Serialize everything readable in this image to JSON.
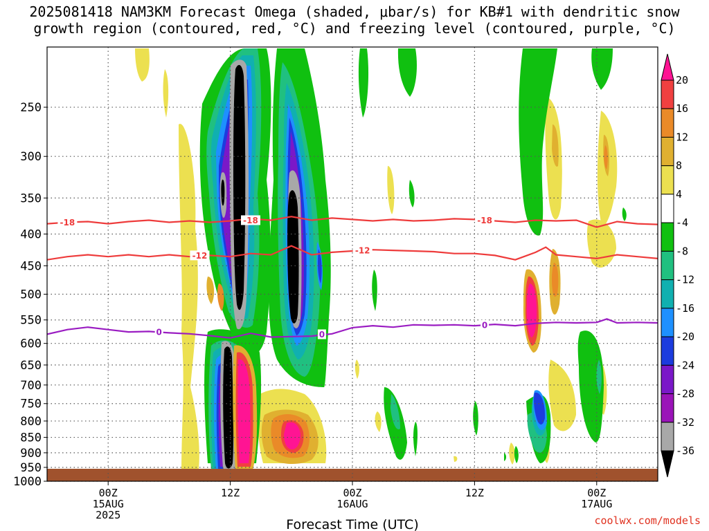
{
  "title_line1": "2025081418 NAM3KM Forecast Omega (shaded, μbar/s) for KB#1 with dendritic snow",
  "title_line2": "growth region (contoured, red, °C) and freezing level (contoured, purple, °C)",
  "credit": "coolwx.com/models",
  "colors": {
    "dgz_contour": "#ee3b3b",
    "freezing_contour": "#9a1cc2",
    "ground": "#a0522d"
  },
  "chart_data": {
    "type": "heatmap",
    "title": "2025081418 NAM3KM Forecast Omega (shaded, μbar/s) for KB#1 with dendritic snow growth region (contoured, red, °C) and freezing level (contoured, purple, °C)",
    "xlabel": "Forecast Time (UTC)",
    "ylabel": "",
    "x_ticks": [
      {
        "label": "00Z",
        "sub": "15AUG",
        "sub2": "2025",
        "hour": 6
      },
      {
        "label": "12Z",
        "sub": "",
        "sub2": "",
        "hour": 18
      },
      {
        "label": "00Z",
        "sub": "16AUG",
        "sub2": "",
        "hour": 30
      },
      {
        "label": "12Z",
        "sub": "",
        "sub2": "",
        "hour": 42
      },
      {
        "label": "00Z",
        "sub": "17AUG",
        "sub2": "",
        "hour": 54
      }
    ],
    "xlim_hours": [
      0,
      60
    ],
    "y_ticks": [
      250,
      300,
      350,
      400,
      450,
      500,
      550,
      600,
      650,
      700,
      750,
      800,
      850,
      900,
      950,
      1000
    ],
    "ylim_hpa": [
      200,
      1000
    ],
    "y_scale": "log-pressure",
    "grid": true,
    "colorbar": {
      "labels": [
        "20",
        "16",
        "12",
        "8",
        "4",
        "-4",
        "-8",
        "-12",
        "-16",
        "-20",
        "-24",
        "-28",
        "-32",
        "-36"
      ],
      "colors": [
        "#ff1493",
        "#f04040",
        "#ea8a28",
        "#e0b030",
        "#ece050",
        "#ffffff",
        "#10c010",
        "#20c080",
        "#10b0b0",
        "#1e90ff",
        "#1c3cde",
        "#7a18c8",
        "#9a14b8",
        "#a8a8a8",
        "#000000"
      ]
    },
    "dgz_contours": [
      {
        "value": -18,
        "label": "-18",
        "points": [
          [
            0,
            385
          ],
          [
            2,
            383
          ],
          [
            4,
            382
          ],
          [
            6,
            385
          ],
          [
            8,
            382
          ],
          [
            10,
            380
          ],
          [
            12,
            383
          ],
          [
            14,
            381
          ],
          [
            16,
            383
          ],
          [
            18,
            381
          ],
          [
            20,
            378
          ],
          [
            22,
            380
          ],
          [
            24,
            375
          ],
          [
            26,
            380
          ],
          [
            28,
            377
          ],
          [
            30,
            379
          ],
          [
            32,
            381
          ],
          [
            34,
            379
          ],
          [
            36,
            381
          ],
          [
            38,
            380
          ],
          [
            40,
            378
          ],
          [
            42,
            379
          ],
          [
            44,
            381
          ],
          [
            46,
            383
          ],
          [
            48,
            380
          ],
          [
            50,
            381
          ],
          [
            52,
            380
          ],
          [
            54,
            390
          ],
          [
            56,
            382
          ],
          [
            58,
            385
          ],
          [
            60,
            386
          ]
        ],
        "label_at": [
          [
            2,
            383
          ],
          [
            20,
            380
          ],
          [
            43,
            380
          ]
        ]
      },
      {
        "value": -12,
        "label": "-12",
        "points": [
          [
            0,
            440
          ],
          [
            2,
            435
          ],
          [
            4,
            432
          ],
          [
            6,
            435
          ],
          [
            8,
            432
          ],
          [
            10,
            435
          ],
          [
            12,
            432
          ],
          [
            14,
            435
          ],
          [
            16,
            433
          ],
          [
            18,
            435
          ],
          [
            20,
            430
          ],
          [
            22,
            432
          ],
          [
            24,
            418
          ],
          [
            26,
            432
          ],
          [
            28,
            428
          ],
          [
            30,
            426
          ],
          [
            32,
            424
          ],
          [
            34,
            425
          ],
          [
            36,
            426
          ],
          [
            38,
            427
          ],
          [
            40,
            430
          ],
          [
            42,
            430
          ],
          [
            44,
            433
          ],
          [
            46,
            440
          ],
          [
            48,
            428
          ],
          [
            49,
            420
          ],
          [
            50,
            432
          ],
          [
            52,
            435
          ],
          [
            54,
            438
          ],
          [
            56,
            432
          ],
          [
            58,
            435
          ],
          [
            60,
            438
          ]
        ],
        "label_at": [
          [
            15,
            433
          ],
          [
            31,
            425
          ]
        ]
      }
    ],
    "freezing_contours": [
      {
        "value": 0,
        "label": "0",
        "points": [
          [
            0,
            580
          ],
          [
            2,
            570
          ],
          [
            4,
            565
          ],
          [
            6,
            570
          ],
          [
            8,
            575
          ],
          [
            10,
            574
          ],
          [
            12,
            577
          ],
          [
            14,
            579
          ],
          [
            16,
            583
          ],
          [
            18,
            588
          ],
          [
            20,
            578
          ],
          [
            22,
            586
          ],
          [
            24,
            585
          ],
          [
            26,
            584
          ],
          [
            28,
            579
          ],
          [
            30,
            566
          ],
          [
            32,
            562
          ],
          [
            34,
            565
          ],
          [
            36,
            560
          ],
          [
            38,
            561
          ],
          [
            40,
            560
          ],
          [
            42,
            562
          ],
          [
            44,
            559
          ],
          [
            46,
            562
          ],
          [
            48,
            557
          ],
          [
            50,
            555
          ],
          [
            52,
            556
          ],
          [
            54,
            555
          ],
          [
            55,
            548
          ],
          [
            56,
            556
          ],
          [
            58,
            555
          ],
          [
            60,
            556
          ]
        ],
        "label_at": [
          [
            11,
            575
          ],
          [
            27,
            580
          ],
          [
            43,
            560
          ]
        ]
      }
    ],
    "features": [
      {
        "name": "upper black core",
        "x_hours": 18.8,
        "p_top": 215,
        "p_bottom": 585,
        "min_omega": -36
      },
      {
        "name": "mid black core",
        "x_hours": 24.5,
        "p_top": 350,
        "p_bottom": 575,
        "min_omega": -36
      },
      {
        "name": "low black core",
        "x_hours": 18.0,
        "p_top": 640,
        "p_bottom": 985,
        "min_omega": -36
      },
      {
        "name": "low magenta max",
        "x_hours": 19.5,
        "p_top": 670,
        "p_bottom": 960,
        "max_omega": 20
      },
      {
        "name": "lower magenta max",
        "x_hours": 24.3,
        "p_top": 800,
        "p_bottom": 970,
        "max_omega": 20
      },
      {
        "name": "mid magenta max",
        "x_hours": 46.0,
        "p_top": 500,
        "p_bottom": 620,
        "max_omega": 20
      },
      {
        "name": "blue min",
        "x_hours": 46.6,
        "p_top": 720,
        "p_bottom": 820,
        "min_omega": -20
      }
    ]
  }
}
